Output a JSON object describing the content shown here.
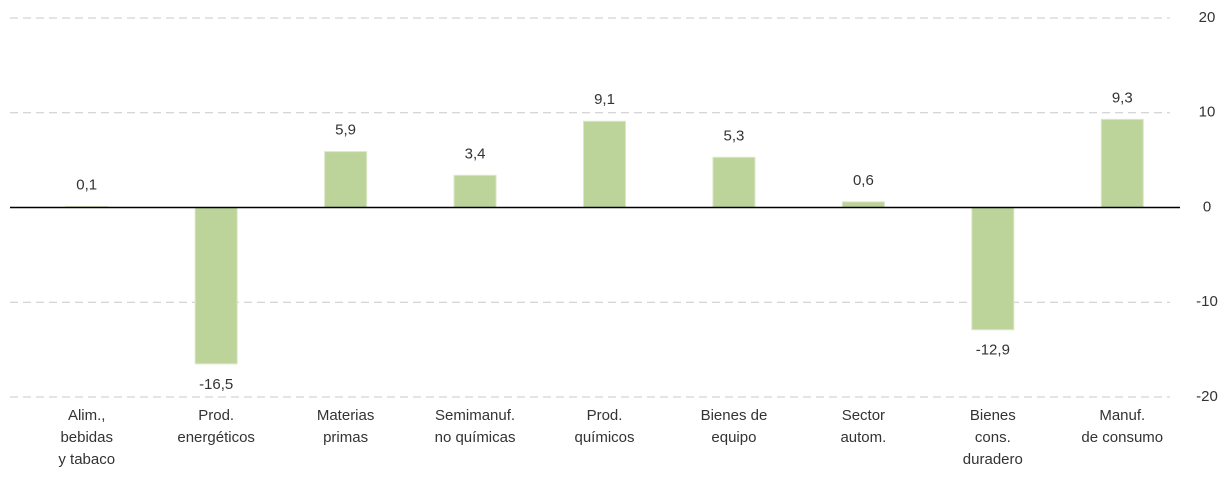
{
  "chart_data": {
    "type": "bar",
    "categories": [
      "Alim.,\nbebidas\ny tabaco",
      "Prod.\nenergéticos",
      "Materias\nprimas",
      "Semimanuf.\nno químicas",
      "Prod.\nquímicos",
      "Bienes de\nequipo",
      "Sector\nautom.",
      "Bienes\ncons.\nduradero",
      "Manuf.\nde consumo"
    ],
    "values": [
      0.1,
      -16.5,
      5.9,
      3.4,
      9.1,
      5.3,
      0.6,
      -12.9,
      9.3
    ],
    "value_labels": [
      "0,1",
      "-16,5",
      "5,9",
      "3,4",
      "9,1",
      "5,3",
      "0,6",
      "-12,9",
      "9,3"
    ],
    "color": "#bcd39a",
    "ylim": [
      -20,
      20
    ],
    "yticks": [
      -20,
      -10,
      0,
      10,
      20
    ],
    "grid": true
  }
}
